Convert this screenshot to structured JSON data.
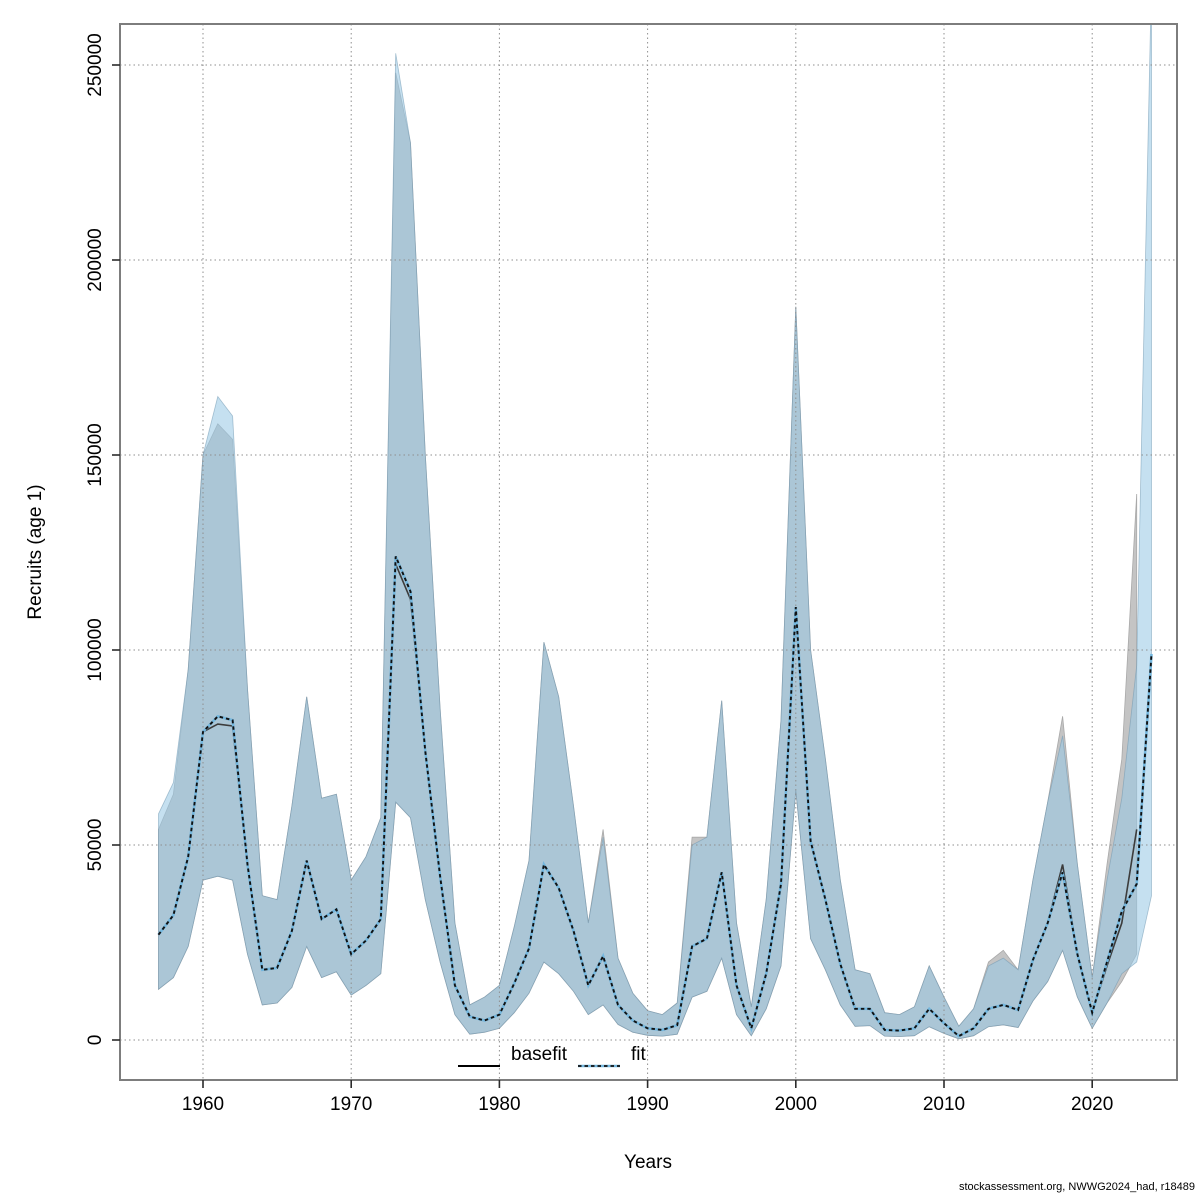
{
  "footer": "stockassessment.org, NWWG2024_had, r18489",
  "axes": {
    "x_label": "Years",
    "y_label": "Recruits (age 1)",
    "x_tick_values": [
      1960,
      1970,
      1980,
      1990,
      2000,
      2010,
      2020
    ],
    "x_tick_labels": [
      "1960",
      "1970",
      "1980",
      "1990",
      "2000",
      "2010",
      "2020"
    ],
    "y_tick_values": [
      0,
      50000,
      100000,
      150000,
      200000,
      250000
    ],
    "y_tick_labels": [
      "0",
      "50000",
      "100000",
      "150000",
      "200000",
      "250000"
    ]
  },
  "legend": {
    "items": [
      {
        "label": "basefit",
        "style": "solid"
      },
      {
        "label": "fit",
        "style": "dashed"
      }
    ]
  },
  "colors": {
    "band_basefit_fill": "#c4c4c4",
    "band_basefit_stroke": "#a9a9a9",
    "band_fit_fill": "rgba(152,200,229,0.56)",
    "band_fit_stroke": "rgba(110,150,175,0.55)",
    "basefit_line": "#3c3c3c",
    "fit_line_under": "#74b7de",
    "fit_line_dash": "#111111",
    "grid": "#8f8f8f",
    "box": "#7d7d7d",
    "tick": "#2b2b2b",
    "legend_basefit": "#000000"
  },
  "chart_data": {
    "type": "line",
    "title": "",
    "xlabel": "Years",
    "ylabel": "Recruits (age 1)",
    "xlim": [
      1954.4,
      2025.7
    ],
    "ylim": [
      0,
      255000
    ],
    "grid": true,
    "legend_position": "bottom-center-inside",
    "x": [
      1957,
      1958,
      1959,
      1960,
      1961,
      1962,
      1963,
      1964,
      1965,
      1966,
      1967,
      1968,
      1969,
      1970,
      1971,
      1972,
      1973,
      1974,
      1975,
      1976,
      1977,
      1978,
      1979,
      1980,
      1981,
      1982,
      1983,
      1984,
      1985,
      1986,
      1987,
      1988,
      1989,
      1990,
      1991,
      1992,
      1993,
      1994,
      1995,
      1996,
      1997,
      1998,
      1999,
      2000,
      2001,
      2002,
      2003,
      2004,
      2005,
      2006,
      2007,
      2008,
      2009,
      2010,
      2011,
      2012,
      2013,
      2014,
      2015,
      2016,
      2017,
      2018,
      2019,
      2020,
      2021,
      2022,
      2023,
      2024
    ],
    "series": [
      {
        "name": "fit",
        "style": "dashed",
        "values": [
          27000,
          32000,
          47000,
          79000,
          83000,
          82000,
          45000,
          18000,
          18500,
          28000,
          46000,
          31000,
          33500,
          22000,
          25500,
          31000,
          124000,
          115000,
          74000,
          42000,
          14000,
          6000,
          5000,
          6500,
          14500,
          23500,
          45000,
          39000,
          28000,
          14000,
          21500,
          9000,
          5000,
          3000,
          2600,
          3800,
          24000,
          26000,
          43000,
          14000,
          3000,
          17000,
          40000,
          111000,
          51000,
          36000,
          19500,
          8000,
          8000,
          2600,
          2400,
          3000,
          8000,
          4300,
          1000,
          3000,
          8000,
          9000,
          7700,
          20500,
          30000,
          43000,
          22000,
          7000,
          20000,
          33000,
          40000,
          99000
        ],
        "ci_high": [
          58000,
          66000,
          95000,
          150000,
          165000,
          160000,
          90000,
          37000,
          36000,
          60000,
          88000,
          62000,
          63000,
          41000,
          47000,
          57000,
          253000,
          230000,
          150000,
          85000,
          30000,
          9000,
          11000,
          14000,
          29000,
          46000,
          102000,
          88000,
          60000,
          30000,
          52000,
          21000,
          12000,
          7500,
          6500,
          9500,
          50000,
          52000,
          87000,
          30000,
          8500,
          36000,
          82000,
          188000,
          100000,
          72000,
          41000,
          18000,
          17000,
          7000,
          6500,
          8500,
          19000,
          11000,
          3500,
          8000,
          19000,
          21000,
          18000,
          41000,
          61000,
          78000,
          45000,
          16000,
          41000,
          62000,
          96000,
          272000
        ],
        "ci_low": [
          13000,
          16000,
          24000,
          41000,
          42000,
          41000,
          22000,
          9000,
          9500,
          13500,
          24000,
          16000,
          17500,
          11500,
          14000,
          17000,
          61000,
          57000,
          36000,
          20000,
          6500,
          1500,
          2000,
          3000,
          7000,
          12000,
          20000,
          17000,
          12500,
          6500,
          9000,
          4000,
          2000,
          1200,
          1000,
          1500,
          11000,
          12500,
          21000,
          6500,
          1100,
          8000,
          19000,
          64000,
          26000,
          18000,
          9000,
          3500,
          3700,
          1000,
          900,
          1100,
          3400,
          1700,
          300,
          1100,
          3400,
          3900,
          3200,
          10000,
          15000,
          23000,
          11000,
          3000,
          9500,
          17000,
          20000,
          37000
        ]
      },
      {
        "name": "basefit",
        "style": "solid",
        "x_end": 2023,
        "values": [
          27000,
          32000,
          47000,
          79000,
          81000,
          80500,
          45000,
          18000,
          18500,
          28000,
          46000,
          31000,
          33500,
          22000,
          25500,
          31000,
          122000,
          113000,
          74000,
          42000,
          14000,
          6000,
          5000,
          6500,
          14500,
          23500,
          45000,
          39000,
          28000,
          14000,
          21500,
          9000,
          5000,
          3000,
          2600,
          3800,
          24000,
          26000,
          43000,
          14000,
          3000,
          17000,
          40000,
          110000,
          51000,
          36000,
          19500,
          8000,
          8000,
          2600,
          2400,
          3000,
          8000,
          4300,
          1000,
          3000,
          8000,
          9000,
          7700,
          20500,
          30000,
          45000,
          22000,
          7000,
          19000,
          30000,
          54000
        ],
        "ci_high": [
          54000,
          63000,
          95000,
          150000,
          158000,
          154000,
          90000,
          37000,
          36000,
          60000,
          88000,
          62000,
          63000,
          41000,
          47000,
          57000,
          248000,
          230000,
          150000,
          85000,
          30000,
          9000,
          11000,
          14000,
          29000,
          46000,
          102000,
          88000,
          60000,
          30000,
          54000,
          21000,
          12000,
          7500,
          6500,
          9500,
          52000,
          52000,
          87000,
          30000,
          8500,
          36000,
          82000,
          188000,
          100000,
          72000,
          41000,
          18000,
          17000,
          7000,
          6500,
          8500,
          19000,
          11000,
          3500,
          8000,
          20000,
          23000,
          18000,
          41000,
          61000,
          83000,
          45000,
          16000,
          45000,
          72000,
          140000
        ],
        "ci_low": [
          13000,
          16000,
          24000,
          41000,
          42000,
          41000,
          22000,
          9000,
          9500,
          13500,
          24000,
          16000,
          17500,
          11500,
          14000,
          17000,
          61000,
          57000,
          36000,
          20000,
          6500,
          1500,
          2000,
          3000,
          7000,
          12000,
          20000,
          17000,
          12500,
          6500,
          9000,
          4000,
          2000,
          1200,
          1000,
          1500,
          11000,
          12500,
          21000,
          6500,
          1100,
          8000,
          19000,
          64000,
          26000,
          18000,
          9000,
          3500,
          3700,
          1000,
          900,
          1100,
          3400,
          1700,
          300,
          1100,
          3400,
          3900,
          3200,
          10000,
          15000,
          23000,
          11000,
          3000,
          9500,
          15000,
          22000
        ]
      }
    ]
  }
}
